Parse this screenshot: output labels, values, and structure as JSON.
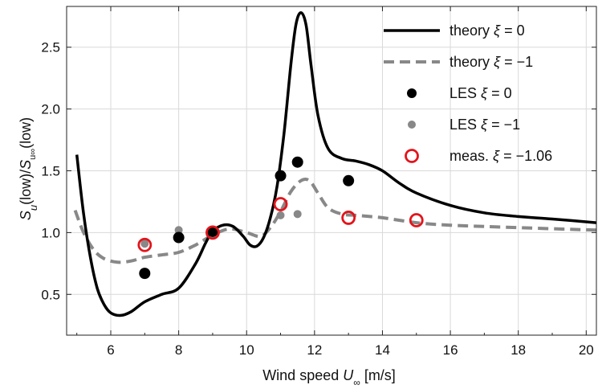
{
  "chart_data": {
    "type": "line",
    "title": "",
    "xlabel": {
      "prefix": "Wind speed ",
      "var": "U",
      "sub": "∞",
      "suffix": "  [m/s]"
    },
    "ylabel": {
      "p1": "S",
      "s1": "u",
      "p2": "(low)/",
      "p3": "S",
      "s3": "u∞",
      "p4": "(low)"
    },
    "xlim": [
      4.7,
      20.3
    ],
    "ylim": [
      0.17,
      2.83
    ],
    "xticks": [
      6,
      8,
      10,
      12,
      14,
      16,
      18,
      20
    ],
    "yticks": [
      0.5,
      1.0,
      1.5,
      2.0,
      2.5
    ],
    "ytick_labels": [
      "0.5",
      "1.0",
      "1.5",
      "2.0",
      "2.5"
    ],
    "grid": true,
    "legend_position": "top-right",
    "series": [
      {
        "name": "theory ξ = 0",
        "kind": "line",
        "color": "#000000",
        "style": "solid",
        "x": [
          5.0,
          5.2,
          5.4,
          5.6,
          5.8,
          6.0,
          6.3,
          6.6,
          7.0,
          7.5,
          8.0,
          8.5,
          8.8,
          9.0,
          9.3,
          9.6,
          9.9,
          10.1,
          10.3,
          10.5,
          10.7,
          10.9,
          11.1,
          11.3,
          11.45,
          11.6,
          11.75,
          11.9,
          12.1,
          12.4,
          12.8,
          13.2,
          13.6,
          14.0,
          14.5,
          15.0,
          16.0,
          17.0,
          18.0,
          19.0,
          20.3
        ],
        "y": [
          1.63,
          1.15,
          0.8,
          0.55,
          0.42,
          0.35,
          0.33,
          0.36,
          0.44,
          0.5,
          0.55,
          0.75,
          0.92,
          1.01,
          1.06,
          1.05,
          0.97,
          0.9,
          0.89,
          0.96,
          1.12,
          1.38,
          1.8,
          2.35,
          2.68,
          2.78,
          2.68,
          2.35,
          1.95,
          1.68,
          1.6,
          1.58,
          1.55,
          1.5,
          1.4,
          1.32,
          1.22,
          1.16,
          1.13,
          1.11,
          1.08
        ]
      },
      {
        "name": "theory ξ = −1",
        "kind": "line",
        "color": "#888888",
        "style": "dashed",
        "x": [
          4.95,
          5.2,
          5.5,
          5.8,
          6.2,
          6.6,
          7.0,
          7.5,
          8.0,
          8.5,
          9.0,
          9.5,
          10.0,
          10.4,
          10.7,
          11.0,
          11.3,
          11.6,
          11.85,
          12.1,
          12.4,
          12.8,
          13.2,
          14.0,
          15.0,
          16.0,
          18.0,
          20.3
        ],
        "y": [
          1.18,
          1.0,
          0.86,
          0.79,
          0.76,
          0.77,
          0.8,
          0.82,
          0.84,
          0.9,
          0.98,
          1.03,
          1.0,
          0.97,
          1.04,
          1.17,
          1.33,
          1.42,
          1.42,
          1.32,
          1.2,
          1.15,
          1.14,
          1.12,
          1.08,
          1.06,
          1.04,
          1.02
        ]
      },
      {
        "name": "LES ξ = 0",
        "kind": "scatter",
        "color": "#000000",
        "marker": "filled-circle-large",
        "x": [
          7,
          8,
          9,
          11,
          11.5,
          13
        ],
        "y": [
          0.67,
          0.96,
          1.01,
          1.46,
          1.57,
          1.42
        ]
      },
      {
        "name": "LES ξ = −1",
        "kind": "scatter",
        "color": "#888888",
        "marker": "filled-circle-small",
        "x": [
          7,
          8,
          9,
          11,
          11.5
        ],
        "y": [
          0.91,
          1.02,
          0.99,
          1.14,
          1.15
        ]
      },
      {
        "name": "meas. ξ = −1.06",
        "kind": "scatter",
        "color": "#e3141b",
        "marker": "open-circle",
        "x": [
          7,
          9,
          11,
          13,
          15
        ],
        "y": [
          0.9,
          1.0,
          1.23,
          1.12,
          1.1
        ]
      }
    ]
  }
}
